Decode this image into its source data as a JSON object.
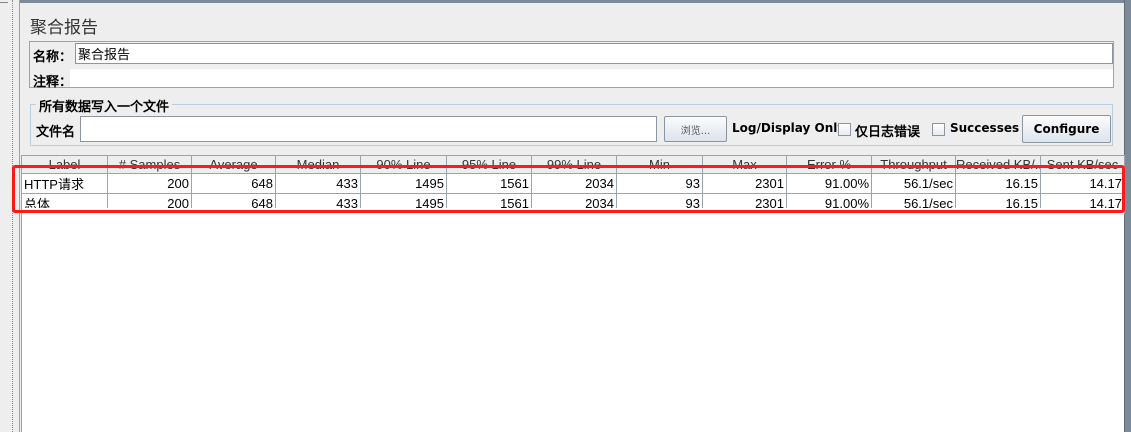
{
  "title": "聚合报告",
  "name_label": "名称：",
  "name_value": "聚合报告",
  "comment_label": "注释：",
  "comment_value": "",
  "file_group_label": "所有数据写入一个文件",
  "filename_label": "文件名",
  "filename_value": "",
  "browse_label": "浏览...",
  "log_display_label": "Log/Display Only:",
  "errors_only_label": "仅日志错误",
  "errors_only_checked": false,
  "successes_label": "Successes",
  "successes_checked": false,
  "configure_label": "Configure",
  "highlight_color": "#ff1a1a",
  "table": {
    "headers": [
      "Label",
      "# Samples",
      "Average",
      "Median",
      "90% Line",
      "95% Line",
      "99% Line",
      "Min",
      "Max",
      "Error %",
      "Throughput",
      "Received KB/...",
      "Sent KB/sec"
    ],
    "rows": [
      [
        "HTTP请求",
        "200",
        "648",
        "433",
        "1495",
        "1561",
        "2034",
        "93",
        "2301",
        "91.00%",
        "56.1/sec",
        "16.15",
        "14.17"
      ],
      [
        "总体",
        "200",
        "648",
        "433",
        "1495",
        "1561",
        "2034",
        "93",
        "2301",
        "91.00%",
        "56.1/sec",
        "16.15",
        "14.17"
      ]
    ]
  }
}
